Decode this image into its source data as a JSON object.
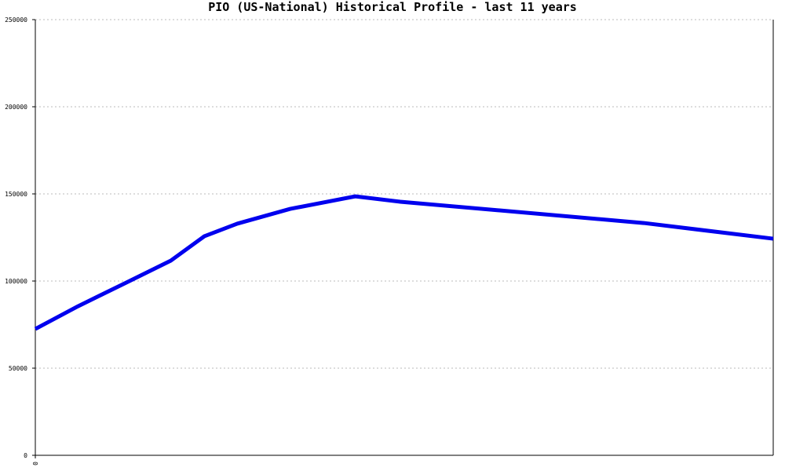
{
  "chart_data": {
    "type": "line",
    "title": "PIO (US-National) Historical Profile - last 11 years",
    "x": [
      0,
      0.64,
      1.35,
      2.02,
      2.52,
      3.01,
      3.8,
      4.77,
      5.44,
      9.07,
      11
    ],
    "series": [
      {
        "color": "#0000ee",
        "values": [
          72500,
          85600,
          99000,
          111700,
          125700,
          132900,
          141400,
          148600,
          145500,
          133300,
          124300
        ]
      }
    ],
    "xlim": [
      0,
      11
    ],
    "xticks": [
      0
    ],
    "ylim": [
      0,
      250000
    ],
    "yticks": [
      0,
      50000,
      100000,
      150000,
      200000,
      250000
    ],
    "grid": true
  }
}
